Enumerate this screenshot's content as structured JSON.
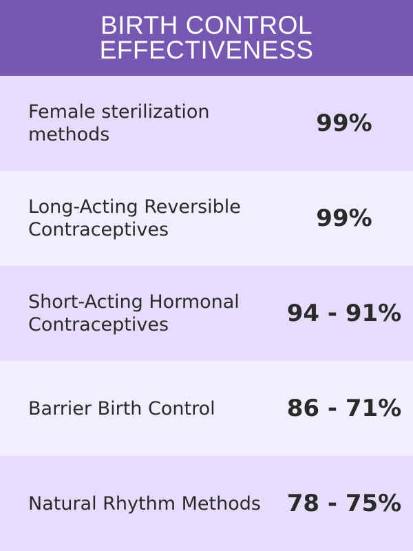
{
  "header": {
    "title": "BIRTH CONTROL EFFECTIVENESS"
  },
  "rows": [
    {
      "label": "Female sterilization methods",
      "value": "99%"
    },
    {
      "label": "Long-Acting Reversible Contraceptives",
      "value": "99%"
    },
    {
      "label": "Short-Acting Hormonal Contraceptives",
      "value": "94 - 91%"
    },
    {
      "label": "Barrier Birth Control",
      "value": "86 - 71%"
    },
    {
      "label": "Natural Rhythm Methods",
      "value": "78 - 75%"
    }
  ],
  "colors": {
    "header_bg": "#7658b2",
    "row_dark": "#e5ddfb",
    "row_light": "#f2eefd",
    "text": "#2a2a2a"
  }
}
